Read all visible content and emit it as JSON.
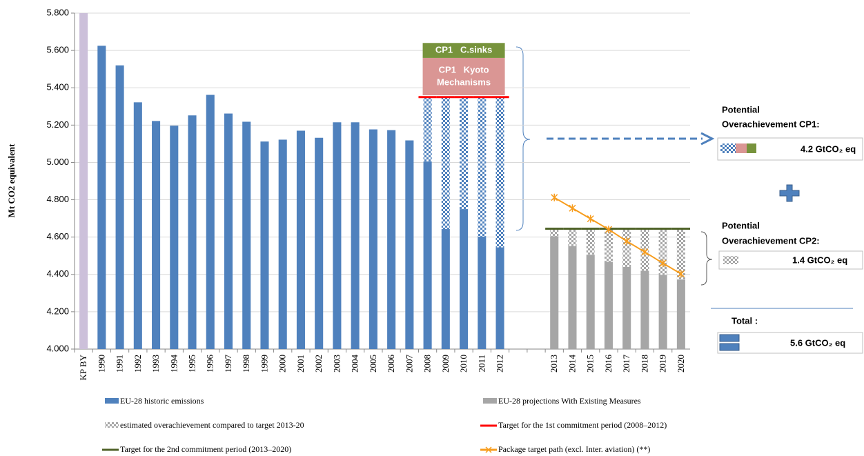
{
  "chart_data": {
    "type": "bar",
    "y_axis_label": "Mt CO2 equivalent",
    "categories": [
      "KP BY",
      "1990",
      "1991",
      "1992",
      "1993",
      "1994",
      "1995",
      "1996",
      "1997",
      "1998",
      "1999",
      "2000",
      "2001",
      "2002",
      "2003",
      "2004",
      "2005",
      "2006",
      "2007",
      "2008",
      "2009",
      "2010",
      "2011",
      "2012",
      null,
      null,
      "2013",
      "2014",
      "2015",
      "2016",
      "2017",
      "2018",
      "2019",
      "2020"
    ],
    "ylim": [
      4000,
      5800
    ],
    "yticks": [
      {
        "value": 4000,
        "label": "4.000"
      },
      {
        "value": 4200,
        "label": "4.200"
      },
      {
        "value": 4400,
        "label": "4.400"
      },
      {
        "value": 4600,
        "label": "4.600"
      },
      {
        "value": 4800,
        "label": "4.800"
      },
      {
        "value": 5000,
        "label": "5.000"
      },
      {
        "value": 5200,
        "label": "5.200"
      },
      {
        "value": 5400,
        "label": "5.400"
      },
      {
        "value": 5600,
        "label": "5.600"
      },
      {
        "value": 5800,
        "label": "5.800"
      }
    ],
    "grid": true,
    "series": [
      {
        "name": "EU-28 historic emissions",
        "kind": "bar",
        "color": "#4f81bd",
        "values": [
          null,
          5625,
          5520,
          5322,
          5222,
          5197,
          5252,
          5362,
          5262,
          5218,
          5112,
          5122,
          5170,
          5132,
          5215,
          5215,
          5177,
          5173,
          5118,
          5005,
          4643,
          4750,
          4603,
          4545,
          null,
          null,
          null,
          null,
          null,
          null,
          null,
          null,
          null,
          null
        ]
      },
      {
        "name": "EU-28 projections With Existing Measures",
        "kind": "bar",
        "color": "#a6a6a6",
        "values": [
          null,
          null,
          null,
          null,
          null,
          null,
          null,
          null,
          null,
          null,
          null,
          null,
          null,
          null,
          null,
          null,
          null,
          null,
          null,
          null,
          null,
          null,
          null,
          null,
          null,
          null,
          4605,
          4552,
          4505,
          4468,
          4440,
          4420,
          4398,
          4372
        ]
      },
      {
        "name": "estimated overachievement compared to target 2013-20",
        "kind": "stack",
        "stack_on": 1,
        "color": "#a6a6a6",
        "values": [
          null,
          null,
          null,
          null,
          null,
          null,
          null,
          null,
          null,
          null,
          null,
          null,
          null,
          null,
          null,
          null,
          null,
          null,
          null,
          null,
          null,
          null,
          null,
          null,
          null,
          null,
          40,
          93,
          140,
          177,
          205,
          225,
          247,
          273
        ]
      },
      {
        "name": "Target for the 1st commitment period (2008–2012)",
        "kind": "level",
        "color": "#ff0000",
        "values": [
          null,
          null,
          null,
          null,
          null,
          null,
          null,
          null,
          null,
          null,
          null,
          null,
          null,
          null,
          null,
          null,
          null,
          null,
          null,
          5350,
          5350,
          5350,
          5350,
          5350,
          null,
          null,
          null,
          null,
          null,
          null,
          null,
          null,
          null,
          null
        ]
      },
      {
        "name": "Target for the 2nd commitment period (2013–2020)",
        "kind": "level",
        "color": "#4f6228",
        "values": [
          null,
          null,
          null,
          null,
          null,
          null,
          null,
          null,
          null,
          null,
          null,
          null,
          null,
          null,
          null,
          null,
          null,
          null,
          null,
          null,
          null,
          null,
          null,
          null,
          null,
          null,
          4645,
          4645,
          4645,
          4645,
          4645,
          4645,
          4645,
          4645
        ]
      },
      {
        "name": "Package target path (excl. Inter. aviation) (**)",
        "kind": "line",
        "color": "#f79d1e",
        "values": [
          null,
          null,
          null,
          null,
          null,
          null,
          null,
          null,
          null,
          null,
          null,
          null,
          null,
          null,
          null,
          null,
          null,
          null,
          null,
          null,
          null,
          null,
          null,
          null,
          null,
          null,
          4812,
          4755,
          4698,
          4641,
          4578,
          4520,
          4460,
          4403
        ]
      },
      {
        "kind": "bar",
        "color": "#ccc0da",
        "values": [
          5800,
          null,
          null,
          null,
          null,
          null,
          null,
          null,
          null,
          null,
          null,
          null,
          null,
          null,
          null,
          null,
          null,
          null,
          null,
          null,
          null,
          null,
          null,
          null,
          null,
          null,
          null,
          null,
          null,
          null,
          null,
          null,
          null,
          null
        ]
      },
      {
        "kind": "stack",
        "stack_on": 0,
        "color": "#4f81bd",
        "values": [
          null,
          null,
          null,
          null,
          null,
          null,
          null,
          null,
          null,
          null,
          null,
          null,
          null,
          null,
          null,
          null,
          null,
          null,
          null,
          345,
          707,
          600,
          747,
          805,
          null,
          null,
          null,
          null,
          null,
          null,
          null,
          null,
          null,
          null
        ]
      }
    ],
    "cp1_blocks": {
      "base": 5360,
      "segments": [
        {
          "lines": [
            "CP1   Kyoto",
            "Mechanisms"
          ],
          "value": 200,
          "color": "#da9694"
        },
        {
          "lines": [
            "CP1   C.sinks"
          ],
          "value": 80,
          "color": "#77933c"
        }
      ]
    },
    "annotations": {
      "cp1_title": [
        "Potential",
        "Overachievement CP1:"
      ],
      "cp1_value": "4.2 GtCO₂ eq",
      "cp2_title": [
        "Potential",
        "Overachievement CP2:"
      ],
      "cp2_value": "1.4 GtCO₂ eq",
      "total_title": "Total :",
      "total_value": "5.6 GtCO₂ eq"
    }
  }
}
